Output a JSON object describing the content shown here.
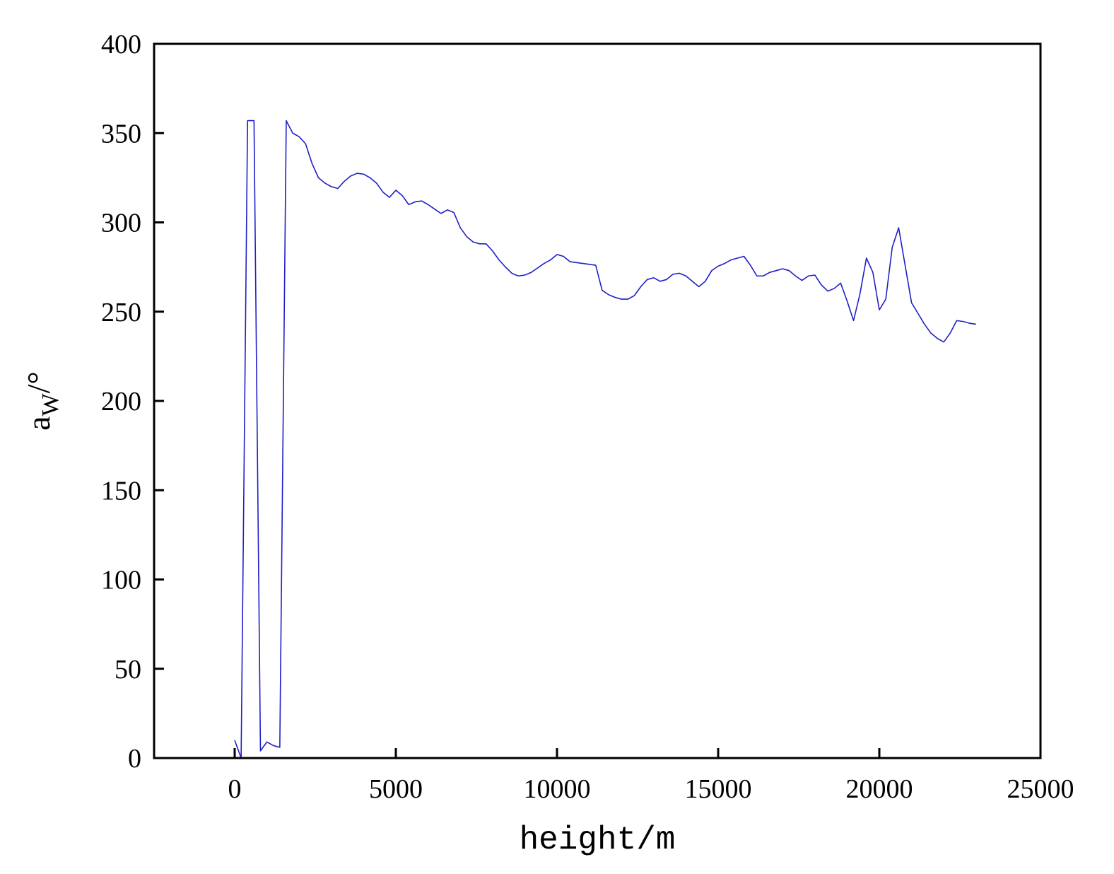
{
  "chart_data": {
    "type": "line",
    "title": "",
    "xlabel": "height/m",
    "ylabel": {
      "base": "a",
      "subscript": "W",
      "suffix": "/°"
    },
    "xlim": [
      -2500,
      25000
    ],
    "ylim": [
      0,
      400
    ],
    "xticks": [
      0,
      5000,
      10000,
      15000,
      20000,
      25000
    ],
    "yticks": [
      0,
      50,
      100,
      150,
      200,
      250,
      300,
      350,
      400
    ],
    "xtick_labels": [
      "0",
      "5000",
      "10000",
      "15000",
      "20000",
      "25000"
    ],
    "ytick_labels": [
      "0",
      "50",
      "100",
      "150",
      "200",
      "250",
      "300",
      "350",
      "400"
    ],
    "grid": false,
    "legend": "none",
    "colors": {
      "line": "#1f1fc8",
      "axes": "#000000",
      "background": "#ffffff"
    },
    "series": [
      {
        "x": [
          0,
          200,
          400,
          600,
          800,
          1000,
          1200,
          1400,
          1600,
          1800,
          2000,
          2200,
          2400,
          2600,
          2800,
          3000,
          3200,
          3400,
          3600,
          3800,
          4000,
          4200,
          4400,
          4600,
          4800,
          5000,
          5200,
          5400,
          5600,
          5800,
          6000,
          6200,
          6400,
          6600,
          6800,
          7000,
          7200,
          7400,
          7600,
          7800,
          8000,
          8200,
          8400,
          8600,
          8800,
          9000,
          9200,
          9400,
          9600,
          9800,
          10000,
          10200,
          10400,
          10600,
          10800,
          11000,
          11200,
          11400,
          11600,
          11800,
          12000,
          12200,
          12400,
          12600,
          12800,
          13000,
          13200,
          13400,
          13600,
          13800,
          14000,
          14200,
          14400,
          14600,
          14800,
          15000,
          15200,
          15400,
          15600,
          15800,
          16000,
          16200,
          16400,
          16600,
          16800,
          17000,
          17200,
          17400,
          17600,
          17800,
          18000,
          18200,
          18400,
          18600,
          18800,
          19000,
          19200,
          19400,
          19600,
          19800,
          20000,
          20200,
          20400,
          20600,
          20800,
          21000,
          21200,
          21400,
          21600,
          21800,
          22000,
          22200,
          22400,
          22600,
          22800,
          23000
        ],
        "y": [
          10,
          0,
          357,
          357,
          4,
          9,
          7,
          6,
          357,
          350,
          348,
          344,
          333,
          325,
          322,
          320,
          319,
          323,
          326,
          327.5,
          327,
          325,
          322,
          317,
          314,
          318,
          315,
          310,
          311.5,
          312,
          310,
          307.5,
          305,
          307,
          305.5,
          297,
          292,
          289,
          288,
          288,
          284,
          279,
          275,
          271.5,
          270,
          270.5,
          272,
          274.5,
          277,
          279,
          282,
          281,
          278,
          277.5,
          277,
          276.5,
          276,
          262,
          259.5,
          258,
          257,
          257,
          259,
          264,
          268,
          269,
          267,
          268,
          271,
          271.5,
          270,
          267,
          264,
          267,
          273,
          275.5,
          277,
          279,
          280,
          281,
          276,
          270,
          270,
          272,
          273,
          274,
          273,
          270,
          267.5,
          270,
          270.5,
          265,
          261.5,
          263,
          266,
          256,
          245,
          260,
          280,
          272,
          251,
          257,
          286,
          297,
          276,
          255,
          249,
          243,
          238,
          235,
          233,
          238,
          245,
          244.5,
          243.5,
          243
        ]
      }
    ]
  }
}
